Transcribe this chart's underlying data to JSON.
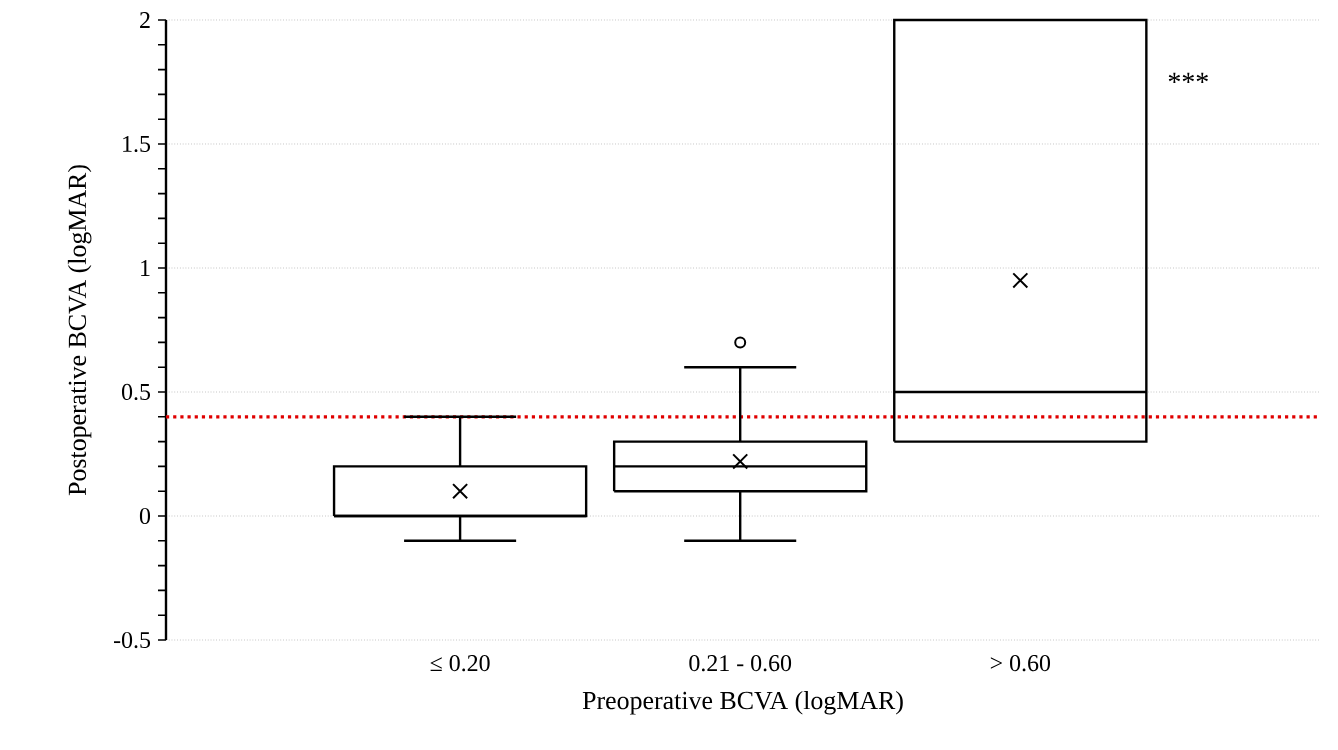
{
  "chart_data": {
    "type": "box",
    "xlabel": "Preoperative BCVA (logMAR)",
    "ylabel": "Postoperative BCVA (logMAR)",
    "categories": [
      "≤ 0.20",
      "0.21 - 0.60",
      "> 0.60"
    ],
    "boxes": [
      {
        "low": -0.1,
        "q1": 0,
        "median": 0,
        "q3": 0.2,
        "high": 0.4,
        "mean": 0.1
      },
      {
        "low": -0.1,
        "q1": 0.1,
        "median": 0.2,
        "q3": 0.3,
        "high": 0.6,
        "mean": 0.22,
        "outliers": [
          0.7
        ]
      },
      {
        "low": 0.3,
        "q1": 0.3,
        "median": 0.5,
        "q3": 2.0,
        "high": 2.0,
        "mean": 0.95
      }
    ],
    "color": "#000000",
    "ylim": [
      -0.5,
      2
    ],
    "yticks": [
      -0.5,
      0,
      0.5,
      1,
      1.5,
      2
    ],
    "grid": "y",
    "ref_lines": [
      {
        "axis": "y",
        "value": 0.4,
        "color": "#e00000",
        "line_style": "dotted"
      }
    ],
    "annotations": [
      "***"
    ]
  }
}
